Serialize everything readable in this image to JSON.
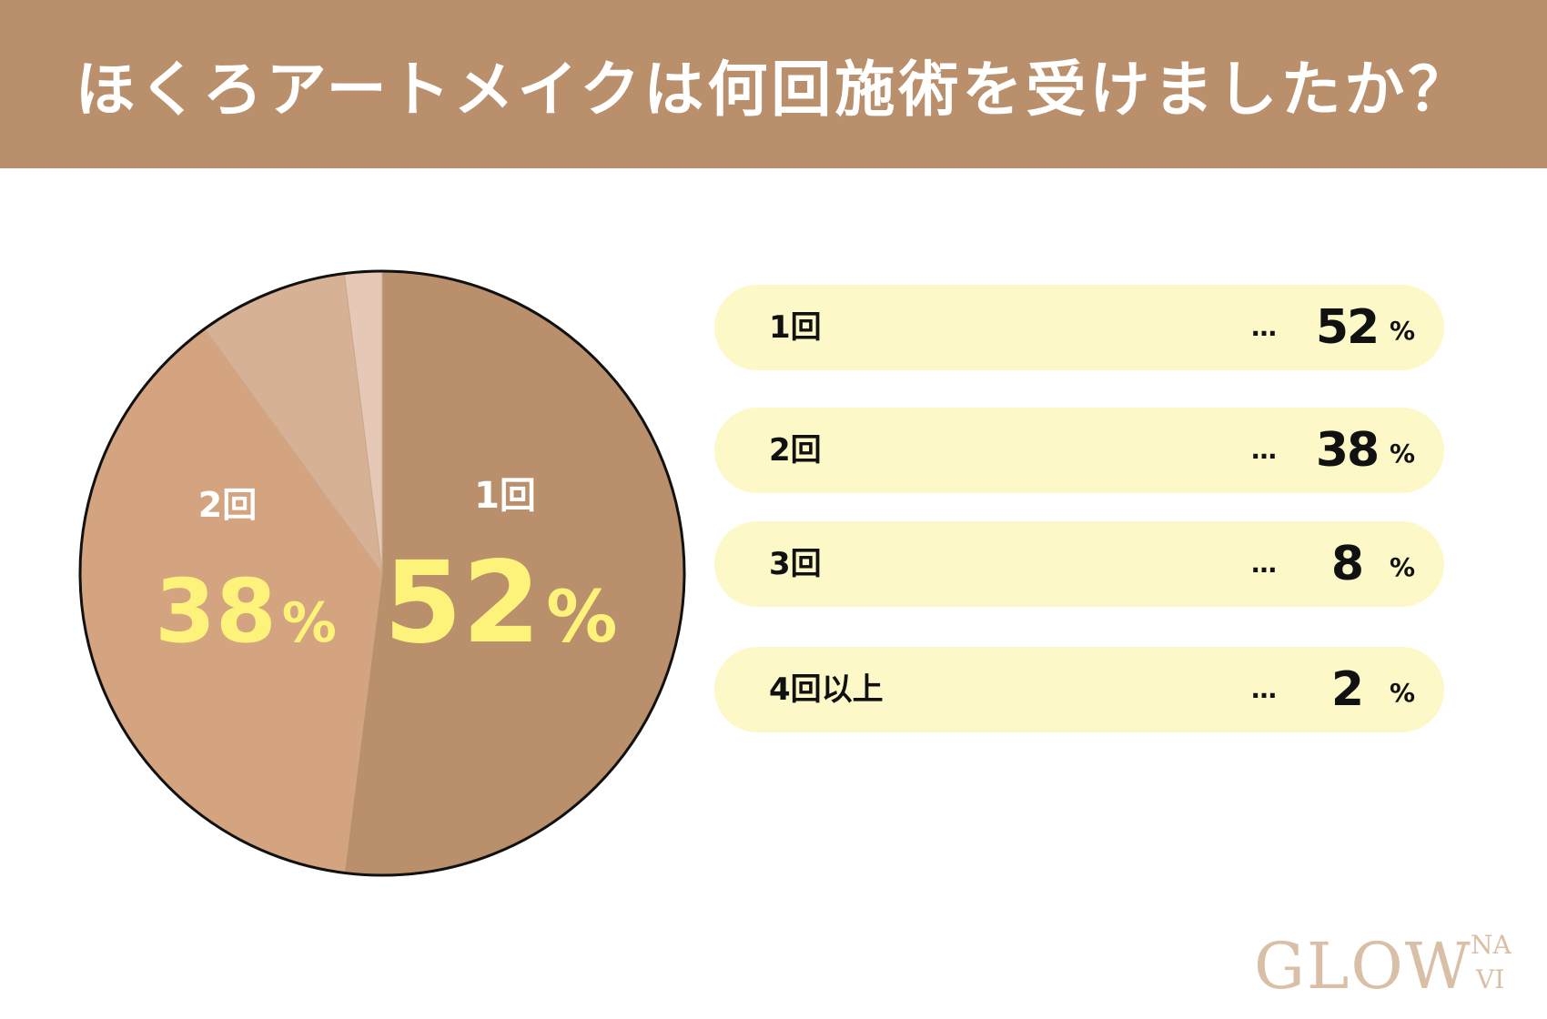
{
  "header": {
    "title": "ほくろアートメイクは何回施術を受けましたか？",
    "background_color": "#b98f6c"
  },
  "chart_data": {
    "type": "pie",
    "title": "ほくろアートメイクは何回施術を受けましたか？",
    "categories": [
      "1回",
      "2回",
      "3回",
      "4回以上"
    ],
    "values": [
      52,
      38,
      8,
      2
    ],
    "unit": "%",
    "colors": [
      "#b98f6c",
      "#d3a47f",
      "#d6b196",
      "#e5c9b6"
    ],
    "slice_labels": [
      {
        "category": "1回",
        "value": "52",
        "unit": "%"
      },
      {
        "category": "2回",
        "value": "38",
        "unit": "%"
      }
    ],
    "legend_placement": "right"
  },
  "legend": {
    "dots": "…",
    "items": [
      {
        "label": "1回",
        "value": "52",
        "unit": "%"
      },
      {
        "label": "2回",
        "value": "38",
        "unit": "%"
      },
      {
        "label": "3回",
        "value": "8",
        "unit": "%"
      },
      {
        "label": "4回以上",
        "value": "2",
        "unit": "%"
      }
    ],
    "row_color": "#fdf8c7"
  },
  "logo": {
    "main": "GLOW",
    "sub_top": "NA",
    "sub_bottom": "VI",
    "color": "#d9bfa6"
  }
}
